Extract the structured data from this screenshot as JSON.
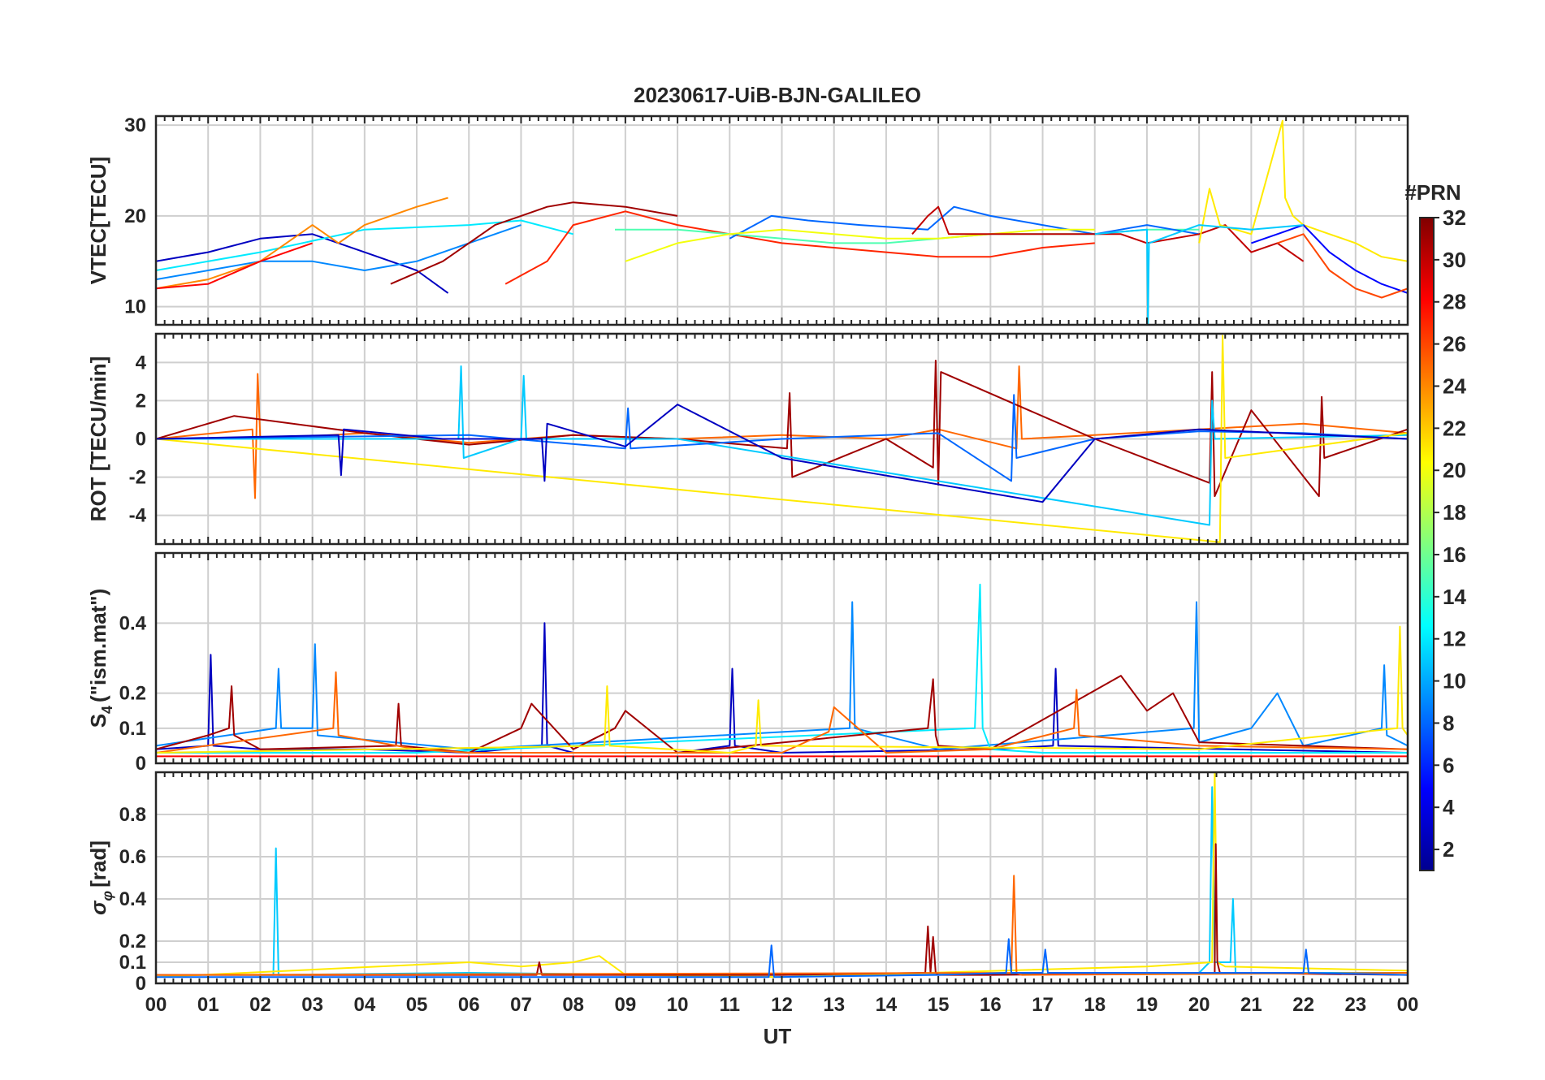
{
  "figure": {
    "title": "20230617-UiB-BJN-GALILEO",
    "x_axis_label": "UT",
    "x_tick_labels": [
      "00",
      "01",
      "02",
      "03",
      "04",
      "05",
      "06",
      "07",
      "08",
      "09",
      "10",
      "11",
      "12",
      "13",
      "14",
      "15",
      "16",
      "17",
      "18",
      "19",
      "20",
      "21",
      "22",
      "23",
      "00"
    ],
    "colorbar_label": "#PRN",
    "colorbar_ticks": [
      2,
      4,
      6,
      8,
      10,
      12,
      14,
      16,
      18,
      20,
      22,
      24,
      26,
      28,
      30,
      32
    ],
    "colorbar_range": [
      1,
      32
    ]
  },
  "chart_data": [
    {
      "type": "line",
      "panel": "vtec",
      "ylabel": "VTEC[TECU]",
      "xlim": [
        0,
        24
      ],
      "ylim": [
        8,
        31
      ],
      "yticks": [
        10,
        20,
        30
      ],
      "series": [
        {
          "prn": 3,
          "x": [
            0,
            1,
            2,
            3,
            4,
            5,
            5.6
          ],
          "y": [
            15,
            16,
            17.5,
            18,
            16,
            14,
            11.5
          ]
        },
        {
          "prn": 9,
          "x": [
            0,
            1,
            2,
            3,
            4,
            5,
            6,
            7
          ],
          "y": [
            13,
            14,
            15,
            15,
            14,
            15,
            17,
            19
          ]
        },
        {
          "prn": 12,
          "x": [
            0,
            2,
            4,
            6,
            7,
            8
          ],
          "y": [
            14,
            16,
            18.5,
            19,
            19.5,
            18
          ]
        },
        {
          "prn": 24,
          "x": [
            0,
            1,
            2,
            3,
            3.5,
            4,
            5,
            5.6
          ],
          "y": [
            12,
            13,
            15,
            19,
            17,
            19,
            21,
            22
          ]
        },
        {
          "prn": 28,
          "x": [
            0,
            1,
            2,
            3
          ],
          "y": [
            12,
            12.5,
            15,
            17
          ]
        },
        {
          "prn": 31,
          "x": [
            4.5,
            5.5,
            6.5,
            7.5,
            8,
            9,
            10
          ],
          "y": [
            12.5,
            15,
            19,
            21,
            21.5,
            21,
            20
          ]
        },
        {
          "prn": 27,
          "x": [
            6.7,
            7.5,
            8,
            9,
            10,
            11,
            12,
            13,
            14,
            15,
            16,
            17,
            18
          ],
          "y": [
            12.5,
            15,
            19,
            20.5,
            19,
            18,
            17,
            16.5,
            16,
            15.5,
            15.5,
            16.5,
            17
          ]
        },
        {
          "prn": 15,
          "x": [
            8.8,
            10,
            11,
            12,
            13,
            14,
            15,
            16,
            17,
            18,
            19,
            20
          ],
          "y": [
            18.5,
            18.5,
            18,
            17.5,
            17,
            17,
            17.5,
            18,
            18,
            18,
            18.5,
            18.5
          ]
        },
        {
          "prn": 8,
          "x": [
            11,
            11.8,
            12.5,
            13.5,
            14.8,
            15.3,
            16,
            17,
            18,
            19,
            20
          ],
          "y": [
            17.5,
            20,
            19.5,
            19,
            18.5,
            21,
            20,
            19,
            18,
            19,
            18
          ]
        },
        {
          "prn": 20,
          "x": [
            9,
            10,
            11,
            12,
            13,
            14,
            15,
            16,
            17,
            18
          ],
          "y": [
            15,
            17,
            18,
            18.5,
            18,
            17.5,
            17.5,
            18,
            18.5,
            18.5
          ]
        },
        {
          "prn": 30,
          "x": [
            14.5,
            14.8,
            15,
            15.2,
            16,
            17,
            18,
            18.5,
            19,
            20,
            20.5,
            21,
            21.5,
            22
          ],
          "y": [
            18,
            20,
            21,
            18,
            18,
            18,
            18,
            18,
            17,
            18,
            19,
            16,
            17,
            15
          ]
        },
        {
          "prn": 21,
          "x": [
            20,
            20.2,
            20.4,
            21,
            21.6,
            21.65,
            21.8,
            22,
            22.5,
            23,
            23.5,
            24
          ],
          "y": [
            17,
            23,
            19,
            18,
            30.5,
            22,
            20,
            19,
            18,
            17,
            15.5,
            15
          ]
        },
        {
          "prn": 5,
          "x": [
            21,
            21.5,
            22,
            22.5,
            23,
            23.5,
            24
          ],
          "y": [
            17,
            18,
            19,
            16,
            14,
            12.5,
            11.5
          ]
        },
        {
          "prn": 26,
          "x": [
            21.5,
            22,
            22.5,
            23,
            23.5,
            24
          ],
          "y": [
            17,
            18,
            14,
            12,
            11,
            12
          ]
        },
        {
          "prn": 11,
          "x": [
            18,
            19,
            19.02,
            19.04,
            20,
            21,
            22
          ],
          "y": [
            18,
            18.5,
            8,
            17,
            19,
            18.5,
            19
          ]
        }
      ]
    },
    {
      "type": "line",
      "panel": "rot",
      "ylabel": "ROT [TECU/min]",
      "xlim": [
        0,
        24
      ],
      "ylim": [
        -5.5,
        5.5
      ],
      "yticks": [
        -4,
        -2,
        0,
        2,
        4
      ],
      "series": [
        {
          "prn": 25,
          "x": [
            0,
            1.85,
            1.9,
            1.95,
            2,
            4,
            6,
            8,
            10,
            12,
            14,
            15,
            16.5,
            16.55,
            16.6,
            18,
            20,
            22,
            24
          ],
          "y": [
            0,
            0.5,
            -3.1,
            3.4,
            0,
            0.3,
            -0.2,
            0.2,
            0,
            0.2,
            0,
            0.5,
            -0.5,
            3.8,
            0,
            0.2,
            0.5,
            0.8,
            0.3
          ]
        },
        {
          "prn": 31,
          "x": [
            0,
            1.5,
            4,
            6,
            8,
            10,
            12.1,
            12.15,
            12.2,
            14,
            14.9,
            14.95,
            15,
            15.05,
            18,
            20.2,
            20.25,
            20.3,
            21,
            22.3,
            22.35,
            22.4,
            24
          ],
          "y": [
            0,
            1.2,
            0.3,
            -0.3,
            0.2,
            0,
            -0.5,
            2.4,
            -2,
            0,
            -1.5,
            4.1,
            -2.4,
            3.5,
            0,
            -2.3,
            3.5,
            -3,
            1.5,
            -3,
            2.2,
            -1,
            0.5
          ]
        },
        {
          "prn": 11,
          "x": [
            0,
            5.8,
            5.85,
            5.9,
            7,
            7.05,
            7.1,
            10,
            20.2,
            20.25,
            20.3,
            24
          ],
          "y": [
            0,
            0,
            3.8,
            -1,
            0,
            3.3,
            0,
            0,
            -4.5,
            2,
            0,
            0.2
          ]
        },
        {
          "prn": 21,
          "x": [
            0,
            20.4,
            20.45,
            20.5,
            24
          ],
          "y": [
            0,
            -5.4,
            5.4,
            -1,
            0.3
          ]
        },
        {
          "prn": 8,
          "x": [
            0,
            6,
            9,
            9.05,
            9.1,
            12,
            15,
            16.4,
            16.45,
            16.5,
            18,
            20,
            22,
            24
          ],
          "y": [
            0,
            0.2,
            -0.5,
            1.6,
            -0.5,
            0,
            0.3,
            -2.2,
            2.3,
            -1,
            0,
            0.4,
            0.3,
            0
          ]
        },
        {
          "prn": 3,
          "x": [
            0,
            3.5,
            3.55,
            3.6,
            5.5,
            7.4,
            7.45,
            7.5,
            9,
            10,
            12,
            17,
            18,
            20,
            24
          ],
          "y": [
            0,
            0.2,
            -1.9,
            0.5,
            0,
            0,
            -2.2,
            0.8,
            -0.4,
            1.8,
            -1,
            -3.3,
            0,
            0.5,
            0
          ]
        }
      ]
    },
    {
      "type": "line",
      "panel": "s4",
      "ylabel_main": "S",
      "ylabel_sub": "4",
      "ylabel_rest": "(\"ism.mat\")",
      "xlim": [
        0,
        24
      ],
      "ylim": [
        0,
        0.6
      ],
      "yticks": [
        0,
        0.1,
        0.2,
        0.4
      ],
      "series": [
        {
          "prn": 3,
          "x": [
            0,
            1,
            1.05,
            1.1,
            2,
            4,
            6,
            7.4,
            7.45,
            7.5,
            8,
            10,
            11,
            11.05,
            11.1,
            12,
            16,
            17.2,
            17.25,
            17.3,
            24
          ],
          "y": [
            0.04,
            0.05,
            0.31,
            0.05,
            0.04,
            0.04,
            0.03,
            0.05,
            0.4,
            0.05,
            0.03,
            0.03,
            0.05,
            0.27,
            0.05,
            0.03,
            0.04,
            0.05,
            0.27,
            0.05,
            0.03
          ]
        },
        {
          "prn": 9,
          "x": [
            0,
            2.3,
            2.35,
            2.4,
            3,
            3.05,
            3.1,
            6,
            13.3,
            13.35,
            13.4,
            15,
            19.9,
            19.95,
            20,
            21,
            21.5,
            22,
            23.5,
            23.55,
            23.6,
            24
          ],
          "y": [
            0.05,
            0.1,
            0.27,
            0.1,
            0.1,
            0.34,
            0.08,
            0.04,
            0.1,
            0.46,
            0.1,
            0.04,
            0.1,
            0.46,
            0.06,
            0.1,
            0.2,
            0.05,
            0.1,
            0.28,
            0.08,
            0.05
          ]
        },
        {
          "prn": 12,
          "x": [
            0,
            5,
            15.7,
            15.8,
            15.85,
            16,
            17,
            24
          ],
          "y": [
            0.03,
            0.03,
            0.1,
            0.51,
            0.1,
            0.04,
            0.03,
            0.03
          ]
        },
        {
          "prn": 31,
          "x": [
            0,
            1,
            1.4,
            1.45,
            1.5,
            2,
            4.6,
            4.65,
            4.7,
            6,
            7,
            7.2,
            8,
            8.8,
            9,
            10,
            14.8,
            14.9,
            14.95,
            15,
            16,
            18.5,
            19,
            19.5,
            20,
            24
          ],
          "y": [
            0.04,
            0.08,
            0.1,
            0.22,
            0.08,
            0.04,
            0.05,
            0.17,
            0.05,
            0.03,
            0.1,
            0.17,
            0.04,
            0.1,
            0.15,
            0.03,
            0.1,
            0.24,
            0.08,
            0.05,
            0.04,
            0.25,
            0.15,
            0.2,
            0.06,
            0.04
          ]
        },
        {
          "prn": 25,
          "x": [
            0,
            3.4,
            3.45,
            3.5,
            5,
            6,
            12,
            12.9,
            13,
            14,
            16,
            17.6,
            17.65,
            17.7,
            20,
            24
          ],
          "y": [
            0.03,
            0.1,
            0.26,
            0.08,
            0.04,
            0.03,
            0.03,
            0.09,
            0.16,
            0.03,
            0.04,
            0.1,
            0.21,
            0.08,
            0.05,
            0.04
          ]
        },
        {
          "prn": 21,
          "x": [
            0,
            8.6,
            8.65,
            8.7,
            11,
            11.5,
            11.55,
            11.6,
            20,
            23.8,
            23.85,
            23.9,
            24
          ],
          "y": [
            0.03,
            0.05,
            0.22,
            0.05,
            0.03,
            0.05,
            0.18,
            0.05,
            0.04,
            0.1,
            0.39,
            0.1,
            0.08
          ]
        },
        {
          "prn": 28,
          "x": [
            0,
            6,
            12,
            18,
            24
          ],
          "y": [
            0.02,
            0.02,
            0.02,
            0.02,
            0.02
          ]
        }
      ]
    },
    {
      "type": "line",
      "panel": "sigma_phi",
      "ylabel": "σφ[rad]",
      "ylabel_main": "σ",
      "ylabel_sub": "φ",
      "ylabel_rest": "[rad]",
      "xlim": [
        0,
        24
      ],
      "ylim": [
        0,
        1.0
      ],
      "yticks": [
        0,
        0.1,
        0.2,
        0.4,
        0.6,
        0.8
      ],
      "series": [
        {
          "prn": 11,
          "x": [
            0,
            2.25,
            2.3,
            2.35,
            6,
            10,
            14,
            20,
            20.2,
            20.25,
            20.3,
            20.6,
            20.65,
            20.7,
            24
          ],
          "y": [
            0.04,
            0.04,
            0.64,
            0.04,
            0.05,
            0.04,
            0.04,
            0.05,
            0.1,
            0.93,
            0.1,
            0.1,
            0.4,
            0.05,
            0.05
          ]
        },
        {
          "prn": 21,
          "x": [
            0,
            6,
            7,
            8,
            8.5,
            9,
            12,
            19,
            20.25,
            20.3,
            20.35,
            20.5,
            24
          ],
          "y": [
            0.03,
            0.1,
            0.08,
            0.1,
            0.13,
            0.04,
            0.03,
            0.08,
            0.1,
            1.0,
            0.1,
            0.08,
            0.06
          ]
        },
        {
          "prn": 31,
          "x": [
            0,
            7.3,
            7.35,
            7.4,
            12,
            14.75,
            14.8,
            14.85,
            14.9,
            14.95,
            15,
            16,
            20.3,
            20.32,
            20.35,
            20.4,
            24
          ],
          "y": [
            0.04,
            0.04,
            0.1,
            0.04,
            0.04,
            0.05,
            0.27,
            0.05,
            0.22,
            0.05,
            0.04,
            0.04,
            0.05,
            0.66,
            0.1,
            0.05,
            0.04
          ]
        },
        {
          "prn": 25,
          "x": [
            0,
            16.4,
            16.45,
            16.5,
            16.6,
            24
          ],
          "y": [
            0.04,
            0.05,
            0.51,
            0.05,
            0.04,
            0.05
          ]
        },
        {
          "prn": 8,
          "x": [
            0,
            11.75,
            11.8,
            11.85,
            15,
            16.3,
            16.35,
            16.4,
            17,
            17.05,
            17.1,
            22,
            22.05,
            22.1,
            24
          ],
          "y": [
            0.03,
            0.03,
            0.18,
            0.03,
            0.04,
            0.05,
            0.21,
            0.05,
            0.05,
            0.16,
            0.05,
            0.05,
            0.16,
            0.05,
            0.04
          ]
        }
      ]
    }
  ]
}
